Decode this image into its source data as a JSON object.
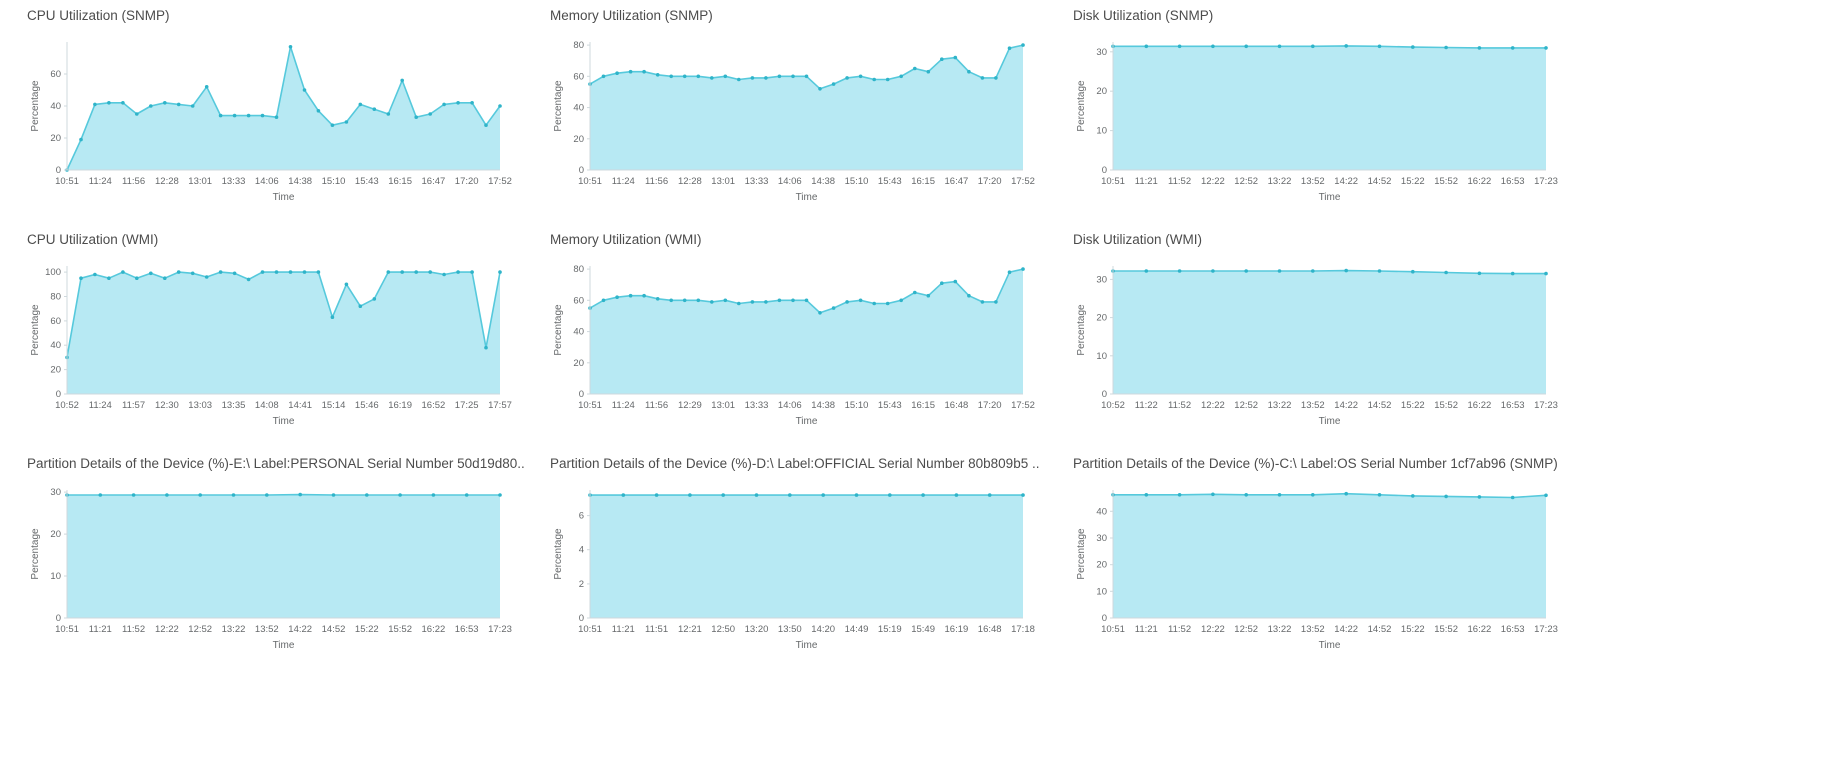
{
  "colors": {
    "area_fill": "#b7e9f3",
    "line": "#56c9dc",
    "marker": "#2fb4c9",
    "axis": "#cfd8dc",
    "tick_text": "#66696b",
    "title_text": "#4c4c4c"
  },
  "chart_data": [
    {
      "type": "area",
      "title": "CPU Utilization (SNMP)",
      "ylabel": "Percentage",
      "xlabel": "Time",
      "ylim": [
        0,
        80
      ],
      "yticks": [
        0,
        20,
        40,
        60
      ],
      "xticklabels": [
        "10:51",
        "11:24",
        "11:56",
        "12:28",
        "13:01",
        "13:33",
        "14:06",
        "14:38",
        "15:10",
        "15:43",
        "16:15",
        "16:47",
        "17:20",
        "17:52"
      ],
      "values": [
        0,
        19,
        41,
        42,
        42,
        35,
        40,
        42,
        41,
        40,
        52,
        34,
        34,
        34,
        34,
        33,
        77,
        50,
        37,
        28,
        30,
        41,
        38,
        35,
        56,
        33,
        35,
        41,
        42,
        42,
        28,
        40
      ]
    },
    {
      "type": "area",
      "title": "Memory Utilization (SNMP)",
      "ylabel": "Percentage",
      "xlabel": "Time",
      "ylim": [
        0,
        82
      ],
      "yticks": [
        0,
        20,
        40,
        60,
        80
      ],
      "xticklabels": [
        "10:51",
        "11:24",
        "11:56",
        "12:28",
        "13:01",
        "13:33",
        "14:06",
        "14:38",
        "15:10",
        "15:43",
        "16:15",
        "16:47",
        "17:20",
        "17:52"
      ],
      "values": [
        55,
        60,
        62,
        63,
        63,
        61,
        60,
        60,
        60,
        59,
        60,
        58,
        59,
        59,
        60,
        60,
        60,
        52,
        55,
        59,
        60,
        58,
        58,
        60,
        65,
        63,
        71,
        72,
        63,
        59,
        59,
        78,
        80
      ]
    },
    {
      "type": "area",
      "title": "Disk Utilization (SNMP)",
      "ylabel": "Percentage",
      "xlabel": "Time",
      "ylim": [
        0,
        32.5
      ],
      "yticks": [
        0,
        10,
        20,
        30
      ],
      "xticklabels": [
        "10:51",
        "11:21",
        "11:52",
        "12:22",
        "12:52",
        "13:22",
        "13:52",
        "14:22",
        "14:52",
        "15:22",
        "15:52",
        "16:22",
        "16:53",
        "17:23"
      ],
      "values": [
        31.4,
        31.4,
        31.4,
        31.4,
        31.4,
        31.4,
        31.4,
        31.5,
        31.4,
        31.2,
        31.1,
        31.0,
        31.0,
        31.0
      ]
    },
    {
      "type": "area",
      "title": "CPU Utilization (WMI)",
      "ylabel": "Percentage",
      "xlabel": "Time",
      "ylim": [
        0,
        105
      ],
      "yticks": [
        0,
        20,
        40,
        60,
        80,
        100
      ],
      "xticklabels": [
        "10:52",
        "11:24",
        "11:57",
        "12:30",
        "13:03",
        "13:35",
        "14:08",
        "14:41",
        "15:14",
        "15:46",
        "16:19",
        "16:52",
        "17:25",
        "17:57"
      ],
      "values": [
        30,
        95,
        98,
        95,
        100,
        95,
        99,
        95,
        100,
        99,
        96,
        100,
        99,
        94,
        100,
        100,
        100,
        100,
        100,
        63,
        90,
        72,
        78,
        100,
        100,
        100,
        100,
        98,
        100,
        100,
        38,
        100
      ]
    },
    {
      "type": "area",
      "title": "Memory Utilization (WMI)",
      "ylabel": "Percentage",
      "xlabel": "Time",
      "ylim": [
        0,
        82
      ],
      "yticks": [
        0,
        20,
        40,
        60,
        80
      ],
      "xticklabels": [
        "10:51",
        "11:24",
        "11:56",
        "12:29",
        "13:01",
        "13:33",
        "14:06",
        "14:38",
        "15:10",
        "15:43",
        "16:15",
        "16:48",
        "17:20",
        "17:52"
      ],
      "values": [
        55,
        60,
        62,
        63,
        63,
        61,
        60,
        60,
        60,
        59,
        60,
        58,
        59,
        59,
        60,
        60,
        60,
        52,
        55,
        59,
        60,
        58,
        58,
        60,
        65,
        63,
        71,
        72,
        63,
        59,
        59,
        78,
        80
      ]
    },
    {
      "type": "area",
      "title": "Disk Utilization (WMI)",
      "ylabel": "Percentage",
      "xlabel": "Time",
      "ylim": [
        0,
        33.5
      ],
      "yticks": [
        0,
        10,
        20,
        30
      ],
      "xticklabels": [
        "10:52",
        "11:22",
        "11:52",
        "12:22",
        "12:52",
        "13:22",
        "13:52",
        "14:22",
        "14:52",
        "15:22",
        "15:52",
        "16:22",
        "16:53",
        "17:23"
      ],
      "values": [
        32.2,
        32.2,
        32.2,
        32.2,
        32.2,
        32.2,
        32.2,
        32.3,
        32.2,
        32.0,
        31.8,
        31.6,
        31.5,
        31.5
      ]
    },
    {
      "type": "area",
      "title": "Partition Details of the Device (%)-E:\\ Label:PERSONAL Serial Number 50d19d80..",
      "ylabel": "Percentage",
      "xlabel": "Time",
      "ylim": [
        0,
        30.5
      ],
      "yticks": [
        0,
        10,
        20,
        30
      ],
      "xticklabels": [
        "10:51",
        "11:21",
        "11:52",
        "12:22",
        "12:52",
        "13:22",
        "13:52",
        "14:22",
        "14:52",
        "15:22",
        "15:52",
        "16:22",
        "16:53",
        "17:23"
      ],
      "values": [
        29.3,
        29.3,
        29.3,
        29.3,
        29.3,
        29.3,
        29.3,
        29.4,
        29.3,
        29.3,
        29.3,
        29.3,
        29.3,
        29.3
      ]
    },
    {
      "type": "area",
      "title": "Partition Details of the Device (%)-D:\\ Label:OFFICIAL Serial Number 80b809b5 ..",
      "ylabel": "Percentage",
      "xlabel": "Time",
      "ylim": [
        0,
        7.5
      ],
      "yticks": [
        0,
        2,
        4,
        6
      ],
      "xticklabels": [
        "10:51",
        "11:21",
        "11:51",
        "12:21",
        "12:50",
        "13:20",
        "13:50",
        "14:20",
        "14:49",
        "15:19",
        "15:49",
        "16:19",
        "16:48",
        "17:18"
      ],
      "values": [
        7.2,
        7.2,
        7.2,
        7.2,
        7.2,
        7.2,
        7.2,
        7.2,
        7.2,
        7.2,
        7.2,
        7.2,
        7.2,
        7.2
      ]
    },
    {
      "type": "area",
      "title": "Partition Details of the Device (%)-C:\\ Label:OS Serial Number 1cf7ab96 (SNMP)",
      "ylabel": "Percentage",
      "xlabel": "Time",
      "ylim": [
        0,
        48
      ],
      "yticks": [
        0,
        10,
        20,
        30,
        40
      ],
      "xticklabels": [
        "10:51",
        "11:21",
        "11:52",
        "12:22",
        "12:52",
        "13:22",
        "13:52",
        "14:22",
        "14:52",
        "15:22",
        "15:52",
        "16:22",
        "16:53",
        "17:23"
      ],
      "values": [
        46.2,
        46.2,
        46.2,
        46.4,
        46.2,
        46.2,
        46.2,
        46.6,
        46.2,
        45.8,
        45.6,
        45.4,
        45.2,
        46.0
      ]
    }
  ]
}
